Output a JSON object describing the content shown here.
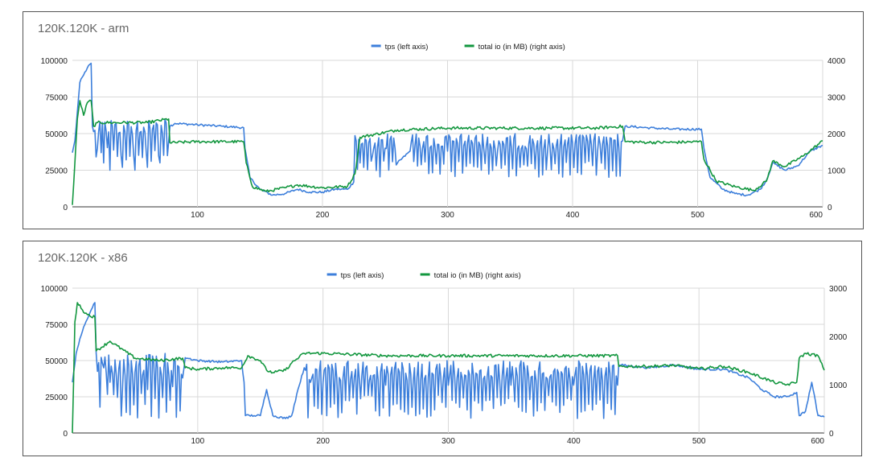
{
  "colors": {
    "tps": "#3d7fdb",
    "io": "#13973f",
    "grid": "#d9d9d9",
    "axis": "#333333"
  },
  "chart_data": [
    {
      "type": "line",
      "title": "120K.120K - arm",
      "legend_position": "top",
      "grid": true,
      "xlim": [
        0,
        600
      ],
      "x_ticks": [
        "100",
        "200",
        "300",
        "400",
        "500",
        "600"
      ],
      "y_left_ticks": [
        "0",
        "25000",
        "50000",
        "75000",
        "100000"
      ],
      "y_right_ticks": [
        "0",
        "1000",
        "2000",
        "3000",
        "4000"
      ],
      "ylim_left": [
        0,
        100000
      ],
      "ylim_right": [
        0,
        4000
      ],
      "series": [
        {
          "name": "tps (left axis)",
          "axis": "left",
          "segments": [
            [
              [
                0,
                37000
              ],
              [
                2,
                45000
              ],
              [
                4,
                65000
              ],
              [
                6,
                85000
              ],
              [
                9,
                90000
              ],
              [
                12,
                95000
              ],
              [
                15,
                98000
              ],
              [
                16,
                55000
              ],
              [
                20,
                40000
              ],
              [
                25,
                30000
              ],
              [
                30,
                25000
              ],
              [
                40,
                27000
              ],
              [
                50,
                25000
              ],
              [
                60,
                27000
              ],
              [
                70,
                30000
              ],
              [
                76,
                35000
              ],
              [
                78,
                55000
              ],
              [
                82,
                57000
              ],
              [
                100,
                56000
              ],
              [
                120,
                55000
              ],
              [
                137,
                54000
              ],
              [
                138,
                40000
              ],
              [
                142,
                20000
              ],
              [
                150,
                12000
              ],
              [
                160,
                8000
              ],
              [
                170,
                9000
              ],
              [
                180,
                12000
              ],
              [
                190,
                10000
              ],
              [
                200,
                10000
              ],
              [
                210,
                12000
              ],
              [
                220,
                12000
              ],
              [
                225,
                17000
              ],
              [
                230,
                30000
              ],
              [
                240,
                35000
              ],
              [
                250,
                40000
              ],
              [
                260,
                30000
              ],
              [
                270,
                38000
              ],
              [
                300,
                38000
              ],
              [
                340,
                38000
              ],
              [
                380,
                38000
              ],
              [
                420,
                38000
              ],
              [
                440,
                45000
              ],
              [
                442,
                55000
              ],
              [
                460,
                54000
              ],
              [
                480,
                53000
              ],
              [
                503,
                53000
              ],
              [
                505,
                40000
              ],
              [
                510,
                20000
              ],
              [
                520,
                12000
              ],
              [
                530,
                9000
              ],
              [
                540,
                8000
              ],
              [
                550,
                12000
              ],
              [
                555,
                18000
              ],
              [
                560,
                30000
              ],
              [
                570,
                25000
              ],
              [
                580,
                28000
              ],
              [
                590,
                38000
              ],
              [
                600,
                42000
              ]
            ]
          ],
          "oscillation": [
            [
              16,
              77,
              "30000-60000"
            ],
            [
              225,
              262,
              "20000-50000"
            ],
            [
              262,
              440,
              "20000-50000"
            ]
          ]
        },
        {
          "name": "total io (in MB) (right axis)",
          "axis": "right",
          "segments": [
            [
              [
                0,
                50
              ],
              [
                2,
                1200
              ],
              [
                4,
                2400
              ],
              [
                6,
                2900
              ],
              [
                9,
                2500
              ],
              [
                12,
                2850
              ],
              [
                15,
                2900
              ],
              [
                17,
                2200
              ],
              [
                20,
                2300
              ],
              [
                40,
                2300
              ],
              [
                60,
                2300
              ],
              [
                77,
                2400
              ],
              [
                78,
                1750
              ],
              [
                100,
                1780
              ],
              [
                120,
                1780
              ],
              [
                137,
                1780
              ],
              [
                139,
                1200
              ],
              [
                144,
                550
              ],
              [
                155,
                420
              ],
              [
                170,
                520
              ],
              [
                180,
                600
              ],
              [
                200,
                520
              ],
              [
                220,
                560
              ],
              [
                226,
                900
              ],
              [
                230,
                1900
              ],
              [
                260,
                2100
              ],
              [
                300,
                2150
              ],
              [
                340,
                2150
              ],
              [
                380,
                2150
              ],
              [
                420,
                2150
              ],
              [
                440,
                2200
              ],
              [
                442,
                1780
              ],
              [
                460,
                1760
              ],
              [
                480,
                1760
              ],
              [
                503,
                1780
              ],
              [
                505,
                1300
              ],
              [
                515,
                700
              ],
              [
                530,
                550
              ],
              [
                545,
                450
              ],
              [
                555,
                700
              ],
              [
                560,
                1250
              ],
              [
                570,
                1100
              ],
              [
                585,
                1400
              ],
              [
                600,
                1800
              ]
            ]
          ]
        }
      ]
    },
    {
      "type": "line",
      "title": "120K.120K - x86",
      "legend_position": "top",
      "grid": true,
      "xlim": [
        0,
        600
      ],
      "x_ticks": [
        "100",
        "200",
        "300",
        "400",
        "500",
        "600"
      ],
      "y_left_ticks": [
        "0",
        "25000",
        "50000",
        "75000",
        "100000"
      ],
      "y_right_ticks": [
        "0",
        "1000",
        "2000",
        "3000"
      ],
      "ylim_left": [
        0,
        100000
      ],
      "ylim_right": [
        0,
        3000
      ],
      "series": [
        {
          "name": "tps (left axis)",
          "axis": "left",
          "segments": [
            [
              [
                0,
                35000
              ],
              [
                3,
                55000
              ],
              [
                6,
                65000
              ],
              [
                10,
                75000
              ],
              [
                15,
                85000
              ],
              [
                18,
                90000
              ],
              [
                19,
                55000
              ],
              [
                25,
                45000
              ],
              [
                30,
                35000
              ],
              [
                40,
                30000
              ],
              [
                60,
                30000
              ],
              [
                80,
                32000
              ],
              [
                88,
                38000
              ],
              [
                90,
                52000
              ],
              [
                100,
                50000
              ],
              [
                120,
                49000
              ],
              [
                135,
                50000
              ],
              [
                137,
                35000
              ],
              [
                138,
                12000
              ],
              [
                145,
                12000
              ],
              [
                150,
                12000
              ],
              [
                155,
                30000
              ],
              [
                160,
                12000
              ],
              [
                170,
                10000
              ],
              [
                175,
                12000
              ],
              [
                180,
                30000
              ],
              [
                185,
                45000
              ],
              [
                190,
                35000
              ],
              [
                200,
                35000
              ],
              [
                250,
                33000
              ],
              [
                300,
                33000
              ],
              [
                350,
                33000
              ],
              [
                400,
                33000
              ],
              [
                435,
                33000
              ],
              [
                436,
                47000
              ],
              [
                460,
                45000
              ],
              [
                480,
                47000
              ],
              [
                500,
                44000
              ],
              [
                520,
                44000
              ],
              [
                540,
                38000
              ],
              [
                550,
                30000
              ],
              [
                560,
                25000
              ],
              [
                570,
                25000
              ],
              [
                578,
                28000
              ],
              [
                580,
                12000
              ],
              [
                585,
                15000
              ],
              [
                590,
                35000
              ],
              [
                595,
                12000
              ],
              [
                600,
                11000
              ]
            ]
          ],
          "oscillation": [
            [
              19,
              88,
              "10000-55000"
            ],
            [
              185,
              435,
              "10000-50000"
            ]
          ]
        },
        {
          "name": "total io (in MB) (right axis)",
          "axis": "right",
          "segments": [
            [
              [
                0,
                0
              ],
              [
                2,
                2300
              ],
              [
                4,
                2700
              ],
              [
                8,
                2550
              ],
              [
                12,
                2450
              ],
              [
                18,
                2400
              ],
              [
                19,
                1700
              ],
              [
                30,
                1900
              ],
              [
                50,
                1550
              ],
              [
                70,
                1500
              ],
              [
                88,
                1550
              ],
              [
                90,
                1350
              ],
              [
                100,
                1320
              ],
              [
                120,
                1350
              ],
              [
                135,
                1350
              ],
              [
                140,
                1600
              ],
              [
                150,
                1500
              ],
              [
                155,
                1300
              ],
              [
                160,
                1250
              ],
              [
                170,
                1300
              ],
              [
                175,
                1450
              ],
              [
                185,
                1650
              ],
              [
                200,
                1650
              ],
              [
                250,
                1600
              ],
              [
                300,
                1600
              ],
              [
                350,
                1600
              ],
              [
                400,
                1600
              ],
              [
                435,
                1600
              ],
              [
                436,
                1380
              ],
              [
                460,
                1380
              ],
              [
                480,
                1400
              ],
              [
                500,
                1330
              ],
              [
                520,
                1380
              ],
              [
                540,
                1250
              ],
              [
                560,
                1050
              ],
              [
                570,
                1000
              ],
              [
                578,
                1050
              ],
              [
                580,
                1550
              ],
              [
                585,
                1650
              ],
              [
                595,
                1600
              ],
              [
                600,
                1300
              ]
            ]
          ]
        }
      ]
    }
  ]
}
